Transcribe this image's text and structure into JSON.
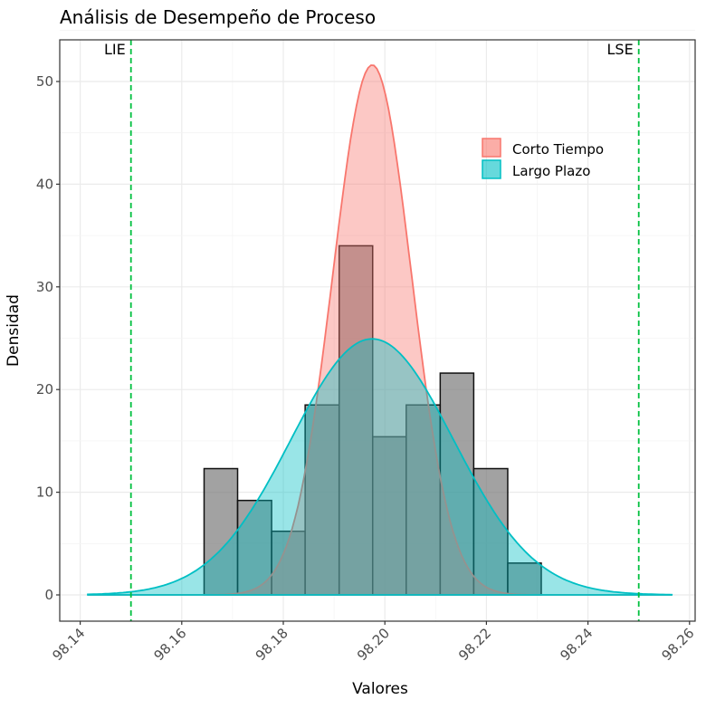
{
  "chart_data": {
    "type": "bar",
    "title": "Análisis de Desempeño de Proceso",
    "xlabel": "Valores",
    "ylabel": "Densidad",
    "xlim": [
      98.1375,
      98.2625
    ],
    "ylim": [
      -2.5,
      54.2
    ],
    "xticks": [
      98.14,
      98.16,
      98.18,
      98.2,
      98.22,
      98.24,
      98.26
    ],
    "xtick_labels": [
      "98.14",
      "98.16",
      "98.18",
      "98.20",
      "98.22",
      "98.24",
      "98.26"
    ],
    "yticks": [
      0,
      10,
      20,
      30,
      40,
      50
    ],
    "ytick_labels": [
      "0",
      "10",
      "20",
      "30",
      "40",
      "50"
    ],
    "grid": true,
    "histogram": {
      "bin_edges": [
        98.1644,
        98.171,
        98.1777,
        98.1843,
        98.191,
        98.1976,
        98.2042,
        98.2109,
        98.2175,
        98.2242,
        98.2308
      ],
      "densities": [
        12.3,
        9.2,
        6.2,
        18.5,
        34.0,
        15.4,
        18.5,
        21.6,
        12.3,
        3.1
      ]
    },
    "series": [
      {
        "name": "Corto Tiempo",
        "type": "normal-density",
        "mean": 98.1975,
        "sd": 0.00773,
        "color": "#F8766D"
      },
      {
        "name": "Largo Plazo",
        "type": "normal-density",
        "mean": 98.1975,
        "sd": 0.016,
        "color": "#00BFC4"
      }
    ],
    "curve_range": [
      98.1415,
      98.2565
    ],
    "reference_lines": [
      {
        "label": "LIE",
        "value": 98.15,
        "color": "#00C040"
      },
      {
        "label": "LSE",
        "value": 98.25,
        "color": "#00C040"
      }
    ],
    "legend": {
      "position": "top-right",
      "entries": [
        "Corto Tiempo",
        "Largo Plazo"
      ]
    }
  }
}
